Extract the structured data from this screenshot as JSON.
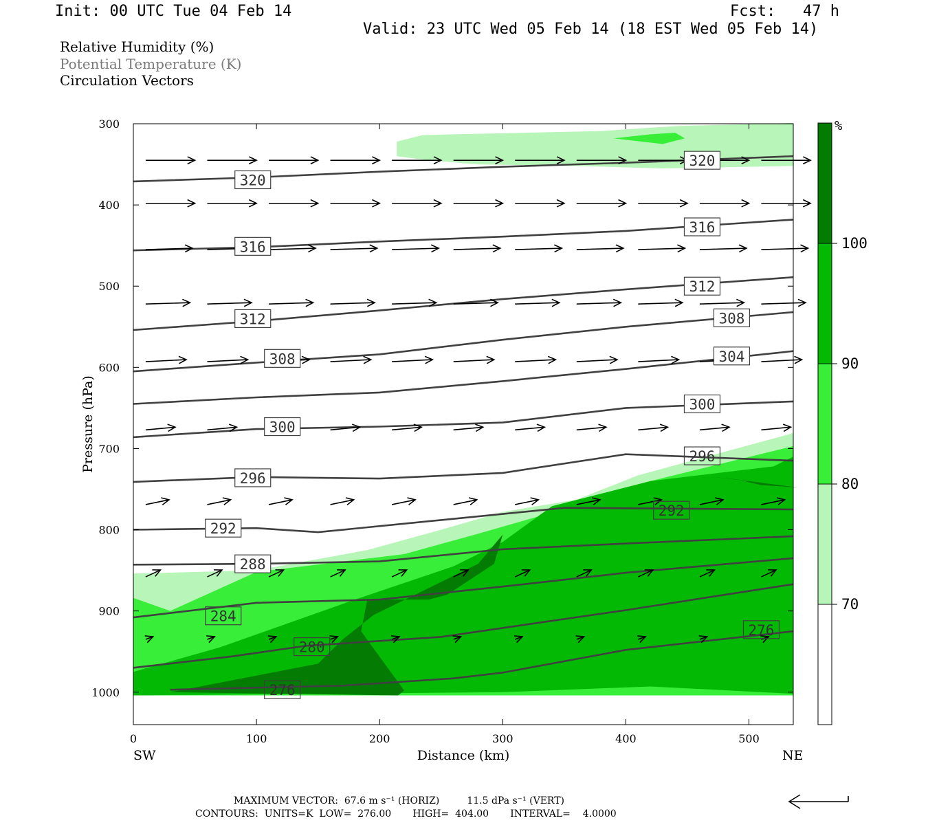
{
  "header": {
    "init": "Init: 00 UTC Tue 04 Feb 14",
    "fcst": "Fcst:   47 h",
    "valid": "Valid: 23 UTC Wed 05 Feb 14 (18 EST Wed 05 Feb 14)"
  },
  "titles": {
    "line1": "Relative Humidity (%)",
    "line2": "Potential Temperature (K)",
    "line3": "Circulation Vectors"
  },
  "footer": {
    "max_vector": "MAXIMUM VECTOR:  67.6 m s⁻¹ (HORIZ)         11.5 dPa s⁻¹ (VERT)",
    "contours": "CONTOURS:  UNITS=K  LOW=  276.00       HIGH=  404.00       INTERVAL=    4.0000"
  },
  "colors": {
    "rh70": "#b8f5b8",
    "rh80": "#39ee39",
    "rh90": "#04b904",
    "rh100": "#047c04",
    "theta_line": "#404040"
  },
  "chart_data": {
    "type": "contour",
    "xlabel": "Distance (km)",
    "ylabel": "Pressure (hPa)",
    "xlim": [
      0,
      536
    ],
    "ylim": [
      1040,
      300
    ],
    "x_ticks": [
      0,
      100,
      200,
      300,
      400,
      500
    ],
    "y_ticks": [
      300,
      400,
      500,
      600,
      700,
      800,
      900,
      1000
    ],
    "x_end_labels": {
      "left": "SW",
      "right": "NE"
    },
    "colorbar": {
      "unit": "%",
      "levels": [
        70,
        80,
        90,
        100
      ],
      "colors": [
        "#ffffff",
        "#b8f5b8",
        "#39ee39",
        "#04b904",
        "#047c04"
      ]
    },
    "theta_contours": [
      {
        "label": "320",
        "points": [
          [
            0,
            371
          ],
          [
            100,
            366
          ],
          [
            200,
            359
          ],
          [
            300,
            353
          ],
          [
            400,
            348
          ],
          [
            536,
            340
          ]
        ],
        "labels_at": [
          [
            97,
            369
          ],
          [
            462,
            345
          ]
        ]
      },
      {
        "label": "316",
        "points": [
          [
            0,
            456
          ],
          [
            100,
            452
          ],
          [
            200,
            445
          ],
          [
            300,
            439
          ],
          [
            400,
            432
          ],
          [
            536,
            418
          ]
        ],
        "labels_at": [
          [
            97,
            451
          ],
          [
            462,
            427
          ]
        ]
      },
      {
        "label": "312",
        "points": [
          [
            0,
            554
          ],
          [
            100,
            543
          ],
          [
            200,
            530
          ],
          [
            300,
            516
          ],
          [
            400,
            504
          ],
          [
            536,
            489
          ]
        ],
        "labels_at": [
          [
            97,
            540
          ],
          [
            462,
            500
          ]
        ]
      },
      {
        "label": "308",
        "points": [
          [
            0,
            605
          ],
          [
            120,
            592
          ],
          [
            200,
            584
          ],
          [
            300,
            566
          ],
          [
            400,
            550
          ],
          [
            536,
            532
          ]
        ],
        "labels_at": [
          [
            121,
            589
          ],
          [
            486,
            539
          ]
        ]
      },
      {
        "label": "304",
        "points": [
          [
            0,
            645
          ],
          [
            100,
            637
          ],
          [
            200,
            631
          ],
          [
            300,
            617
          ],
          [
            400,
            602
          ],
          [
            536,
            580
          ]
        ],
        "labels_at": [
          [
            486,
            586
          ]
        ]
      },
      {
        "label": "300",
        "points": [
          [
            0,
            686
          ],
          [
            100,
            676
          ],
          [
            200,
            673
          ],
          [
            300,
            668
          ],
          [
            400,
            650
          ],
          [
            536,
            642
          ]
        ],
        "labels_at": [
          [
            121,
            673
          ],
          [
            462,
            645
          ]
        ]
      },
      {
        "label": "296",
        "points": [
          [
            0,
            741
          ],
          [
            100,
            735
          ],
          [
            200,
            737
          ],
          [
            300,
            730
          ],
          [
            400,
            707
          ],
          [
            536,
            715
          ]
        ],
        "labels_at": [
          [
            97,
            736
          ],
          [
            462,
            709
          ]
        ]
      },
      {
        "label": "292",
        "points": [
          [
            0,
            800
          ],
          [
            100,
            798
          ],
          [
            150,
            803
          ],
          [
            250,
            788
          ],
          [
            350,
            773
          ],
          [
            536,
            775
          ]
        ],
        "labels_at": [
          [
            73,
            798
          ],
          [
            437,
            776
          ]
        ]
      },
      {
        "label": "288",
        "points": [
          [
            0,
            843
          ],
          [
            100,
            842
          ],
          [
            200,
            839
          ],
          [
            300,
            824
          ],
          [
            400,
            817
          ],
          [
            536,
            808
          ]
        ],
        "labels_at": [
          [
            97,
            842
          ]
        ]
      },
      {
        "label": "284",
        "points": [
          [
            0,
            908
          ],
          [
            100,
            890
          ],
          [
            200,
            886
          ],
          [
            300,
            870
          ],
          [
            400,
            853
          ],
          [
            536,
            835
          ]
        ],
        "labels_at": [
          [
            73,
            906
          ]
        ]
      },
      {
        "label": "280",
        "points": [
          [
            0,
            970
          ],
          [
            80,
            956
          ],
          [
            140,
            943
          ],
          [
            250,
            932
          ],
          [
            400,
            899
          ],
          [
            536,
            867
          ]
        ],
        "labels_at": [
          [
            145,
            944
          ]
        ]
      },
      {
        "label": "276",
        "points": [
          [
            30,
            997
          ],
          [
            170,
            992
          ],
          [
            260,
            983
          ],
          [
            300,
            976
          ],
          [
            400,
            948
          ],
          [
            536,
            925
          ]
        ],
        "labels_at": [
          [
            121,
            997
          ],
          [
            510,
            923
          ]
        ]
      }
    ],
    "rh_regions": [
      {
        "level": 70,
        "points": [
          [
            214,
            322
          ],
          [
            235,
            314
          ],
          [
            260,
            313
          ],
          [
            290,
            312
          ],
          [
            380,
            309
          ],
          [
            440,
            303
          ],
          [
            536,
            299
          ],
          [
            536,
            352
          ],
          [
            430,
            355
          ],
          [
            360,
            352
          ],
          [
            280,
            350
          ],
          [
            240,
            345
          ],
          [
            214,
            340
          ]
        ]
      },
      {
        "level": 80,
        "points": [
          [
            390,
            318
          ],
          [
            420,
            313
          ],
          [
            440,
            311
          ],
          [
            448,
            318
          ],
          [
            430,
            325
          ]
        ]
      },
      {
        "level": 70,
        "points": [
          [
            0,
            854
          ],
          [
            100,
            850
          ],
          [
            190,
            825
          ],
          [
            250,
            800
          ],
          [
            300,
            778
          ],
          [
            360,
            763
          ],
          [
            410,
            733
          ],
          [
            536,
            681
          ],
          [
            536,
            1004
          ],
          [
            0,
            1004
          ]
        ]
      },
      {
        "level": 80,
        "points": [
          [
            0,
            884
          ],
          [
            30,
            900
          ],
          [
            100,
            852
          ],
          [
            220,
            830
          ],
          [
            280,
            805
          ],
          [
            360,
            770
          ],
          [
            420,
            740
          ],
          [
            536,
            697
          ],
          [
            536,
            1004
          ],
          [
            0,
            1004
          ]
        ]
      },
      {
        "level": 90,
        "points": [
          [
            0,
            975
          ],
          [
            70,
            945
          ],
          [
            180,
            886
          ],
          [
            260,
            845
          ],
          [
            300,
            815
          ],
          [
            340,
            771
          ],
          [
            420,
            740
          ],
          [
            520,
            722
          ],
          [
            536,
            710
          ],
          [
            536,
            1002
          ],
          [
            420,
            993
          ],
          [
            300,
            1000
          ],
          [
            0,
            1004
          ]
        ]
      },
      {
        "level": 100,
        "points": [
          [
            300,
            806
          ],
          [
            293,
            842
          ],
          [
            255,
            880
          ],
          [
            240,
            886
          ],
          [
            190,
            886
          ],
          [
            185,
            925
          ],
          [
            220,
            998
          ],
          [
            215,
            1004
          ],
          [
            30,
            1000
          ],
          [
            150,
            965
          ],
          [
            170,
            935
          ],
          [
            195,
            905
          ],
          [
            280,
            842
          ],
          [
            300,
            806
          ]
        ]
      },
      {
        "level": 100,
        "points": [
          [
            470,
            735
          ],
          [
            490,
            738
          ],
          [
            510,
            745
          ],
          [
            540,
            748
          ],
          [
            500,
            740
          ]
        ]
      }
    ],
    "vectors": [
      {
        "p": 345,
        "xs": [
          10,
          60,
          110,
          160,
          210,
          260,
          310,
          360,
          410,
          460,
          510
        ],
        "du": 40,
        "dv": 0
      },
      {
        "p": 398,
        "xs": [
          10,
          60,
          110,
          160,
          210,
          260,
          310,
          360,
          410,
          460,
          510
        ],
        "du": 40,
        "dv": 0
      },
      {
        "p": 455,
        "xs": [
          10,
          60,
          110,
          160,
          210,
          260,
          310,
          360,
          410,
          460,
          510
        ],
        "du": 38,
        "dv": -2
      },
      {
        "p": 522,
        "xs": [
          10,
          60,
          110,
          160,
          210,
          260,
          310,
          360,
          410,
          460,
          510
        ],
        "du": 36,
        "dv": -2
      },
      {
        "p": 593,
        "xs": [
          10,
          60,
          110,
          160,
          210,
          260,
          310,
          360,
          410,
          460,
          510
        ],
        "du": 33,
        "dv": -3
      },
      {
        "p": 677,
        "xs": [
          10,
          60,
          110,
          160,
          210,
          260,
          310,
          360,
          410,
          460,
          510
        ],
        "du": 24,
        "dv": -4
      },
      {
        "p": 769,
        "xs": [
          10,
          60,
          110,
          160,
          210,
          260,
          310,
          360,
          410,
          460,
          510
        ],
        "du": 19,
        "dv": -7
      },
      {
        "p": 858,
        "xs": [
          10,
          60,
          110,
          160,
          210,
          260,
          310,
          360,
          410,
          460,
          510
        ],
        "du": 12,
        "dv": -10
      },
      {
        "p": 935,
        "xs": [
          10,
          60,
          110,
          160,
          210,
          260,
          310,
          360,
          410,
          460,
          510
        ],
        "du": 6,
        "dv": -4
      }
    ]
  }
}
